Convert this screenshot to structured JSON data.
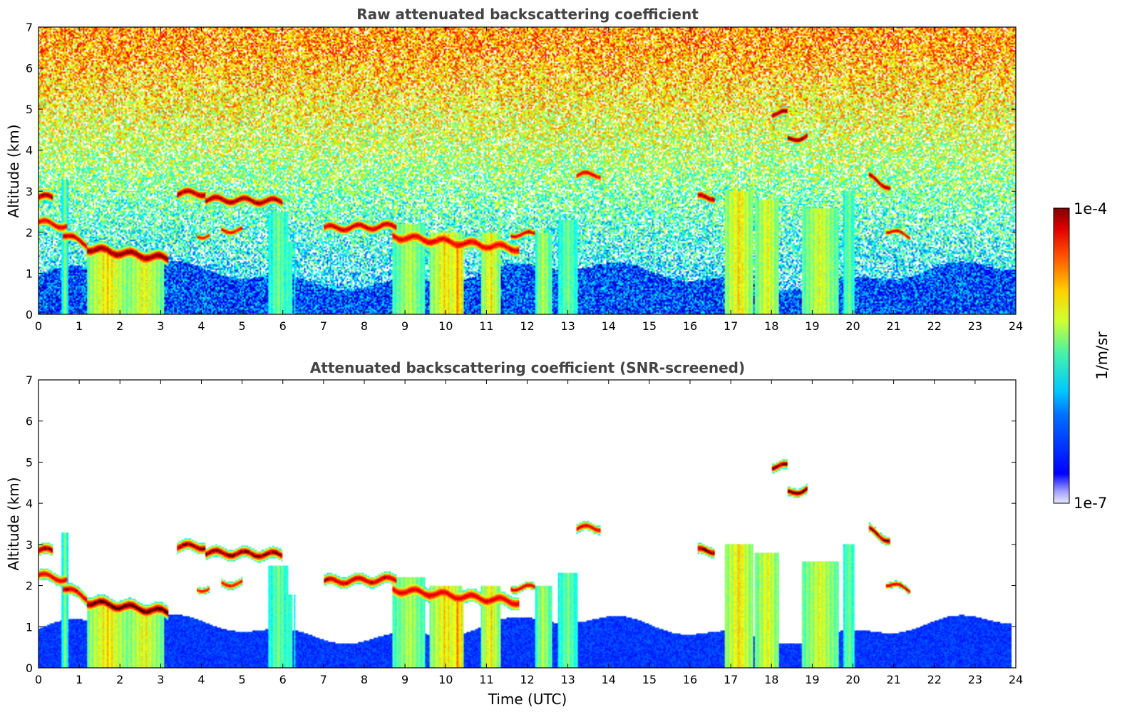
{
  "chart_data": [
    {
      "type": "heatmap",
      "title": "Raw attenuated backscattering coefficient",
      "xlabel": "",
      "ylabel": "Altitude (km)",
      "xlim": [
        0,
        24
      ],
      "ylim": [
        0,
        7
      ],
      "x_ticks": [
        "0",
        "1",
        "2",
        "3",
        "4",
        "5",
        "6",
        "7",
        "8",
        "9",
        "10",
        "11",
        "12",
        "13",
        "14",
        "15",
        "16",
        "17",
        "18",
        "19",
        "20",
        "21",
        "22",
        "23",
        "24"
      ],
      "y_ticks": [
        "0",
        "1",
        "2",
        "3",
        "4",
        "5",
        "6",
        "7"
      ],
      "screened": false
    },
    {
      "type": "heatmap",
      "title": "Attenuated backscattering coefficient (SNR-screened)",
      "xlabel": "Time (UTC)",
      "ylabel": "Altitude (km)",
      "xlim": [
        0,
        24
      ],
      "ylim": [
        0,
        7
      ],
      "x_ticks": [
        "0",
        "1",
        "2",
        "3",
        "4",
        "5",
        "6",
        "7",
        "8",
        "9",
        "10",
        "11",
        "12",
        "13",
        "14",
        "15",
        "16",
        "17",
        "18",
        "19",
        "20",
        "21",
        "22",
        "23",
        "24"
      ],
      "y_ticks": [
        "0",
        "1",
        "2",
        "3",
        "4",
        "5",
        "6",
        "7"
      ],
      "screened": true
    }
  ],
  "colorbar": {
    "label": "1/m/sr",
    "max_label": "1e-4",
    "min_label": "1e-7",
    "colormap": "jet",
    "scale": "log",
    "range": [
      1e-07,
      0.0001
    ]
  }
}
